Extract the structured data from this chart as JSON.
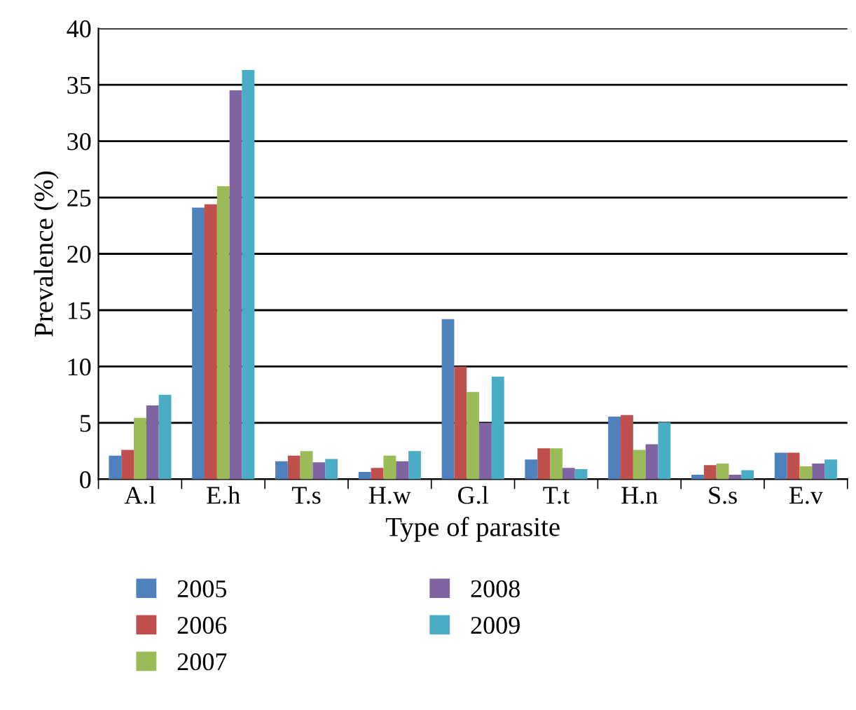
{
  "chart_data": {
    "type": "bar",
    "xlabel": "Type of parasite",
    "ylabel": "Prevalence (%)",
    "categories": [
      "A.l",
      "E.h",
      "T.s",
      "H.w",
      "G.l",
      "T.t",
      "H.n",
      "S.s",
      "E.v"
    ],
    "series": [
      {
        "name": "2005",
        "color": "#4f81bd",
        "values": [
          2.1,
          24.1,
          1.6,
          0.65,
          14.2,
          1.75,
          5.55,
          0.4,
          2.35
        ]
      },
      {
        "name": "2006",
        "color": "#c0504d",
        "values": [
          2.6,
          24.4,
          2.1,
          1.0,
          10.0,
          2.75,
          5.7,
          1.25,
          2.35
        ]
      },
      {
        "name": "2007",
        "color": "#9bbb59",
        "values": [
          5.45,
          26.0,
          2.5,
          2.1,
          7.75,
          2.75,
          2.6,
          1.4,
          1.15
        ]
      },
      {
        "name": "2008",
        "color": "#8064a2",
        "values": [
          6.55,
          34.5,
          1.5,
          1.6,
          5.0,
          1.0,
          3.1,
          0.4,
          1.4
        ]
      },
      {
        "name": "2009",
        "color": "#4bacc6",
        "values": [
          7.5,
          36.3,
          1.8,
          2.5,
          9.1,
          0.9,
          5.05,
          0.8,
          1.75
        ]
      }
    ],
    "ylim": [
      0,
      40
    ],
    "yticks": [
      0,
      5,
      10,
      15,
      20,
      25,
      30,
      35,
      40
    ],
    "grid": "y",
    "legend": "bottom"
  }
}
